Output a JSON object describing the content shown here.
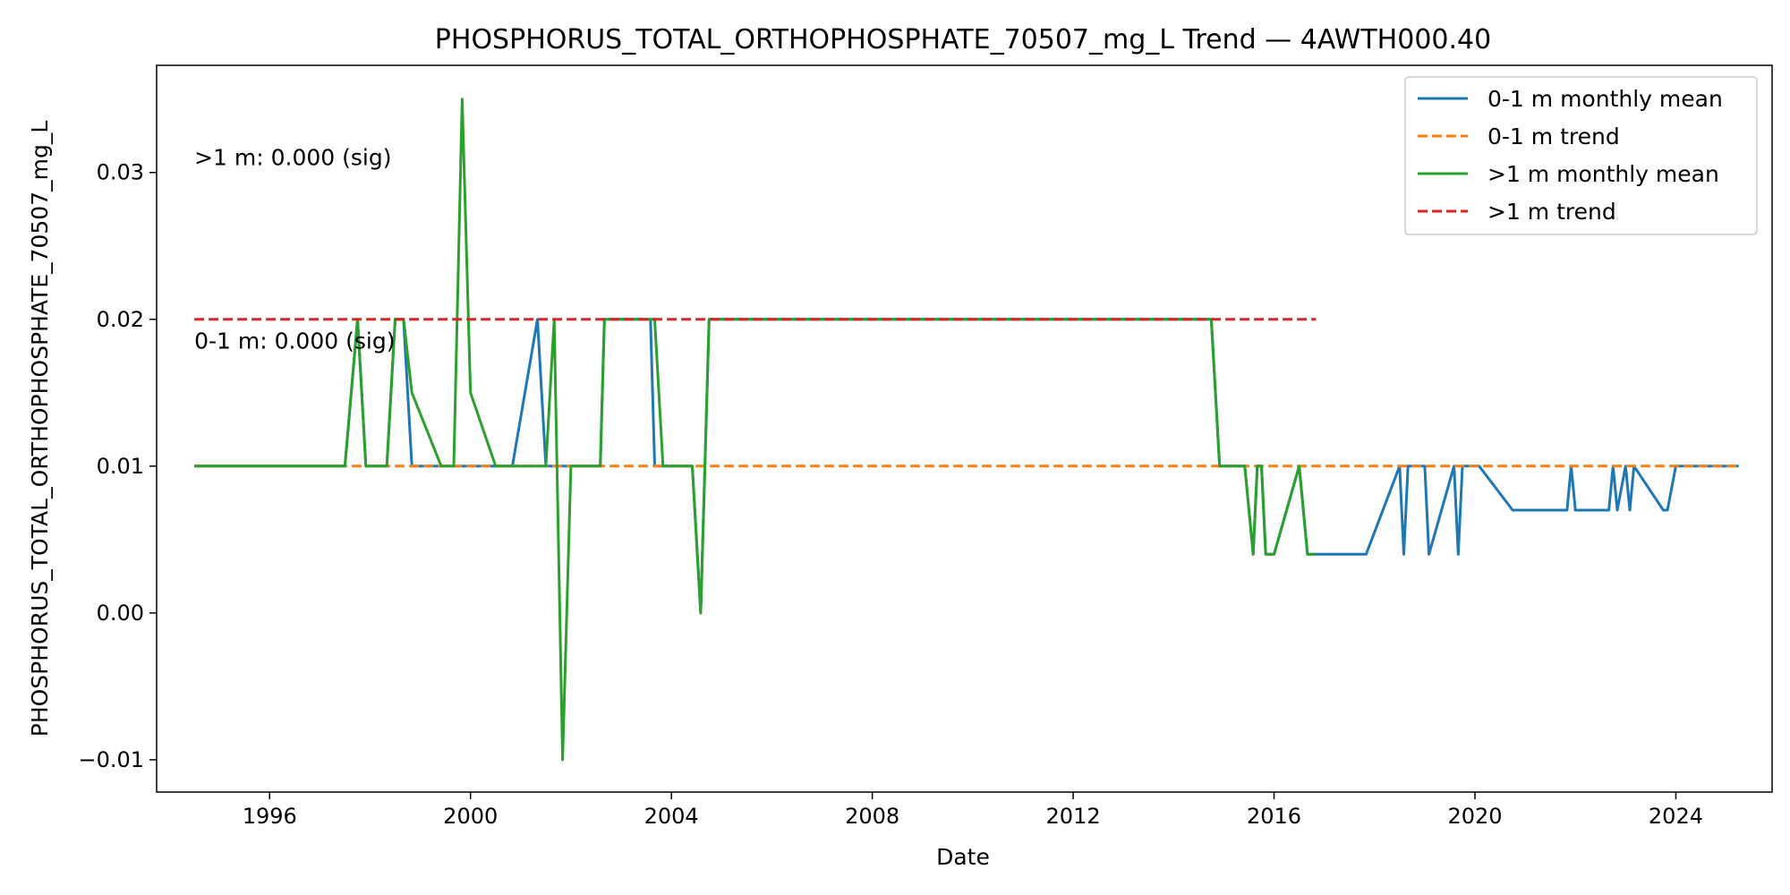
{
  "chart_data": {
    "type": "line",
    "title": "PHOSPHORUS_TOTAL_ORTHOPHOSPHATE_70507_mg_L Trend — 4AWTH000.40",
    "xlabel": "Date",
    "ylabel": "PHOSPHORUS_TOTAL_ORTHOPHOSPHATE_70507_mg_L",
    "x_axis": "date",
    "xlim": [
      "1993-10-01",
      "2025-12-01"
    ],
    "ylim": [
      -0.0122,
      0.0373
    ],
    "x_ticks": [
      "1996",
      "2000",
      "2004",
      "2008",
      "2012",
      "2016",
      "2020",
      "2024"
    ],
    "y_ticks": [
      {
        "value": -0.01,
        "label": "−0.01"
      },
      {
        "value": 0.0,
        "label": "0.00"
      },
      {
        "value": 0.01,
        "label": "0.01"
      },
      {
        "value": 0.02,
        "label": "0.02"
      },
      {
        "value": 0.03,
        "label": "0.03"
      }
    ],
    "grid": false,
    "legend_position": "top-right",
    "annotations": [
      {
        "text": ">1 m: 0.000 (sig)",
        "x": "1994-07-01",
        "y": 0.031
      },
      {
        "text": "0-1 m: 0.000 (sig)",
        "x": "1994-07-01",
        "y": 0.0185
      }
    ],
    "series": [
      {
        "name": "0-1 m monthly mean",
        "color": "#1f77b4",
        "style": "solid",
        "points": [
          [
            "1994-07-01",
            0.01
          ],
          [
            "1997-07-01",
            0.01
          ],
          [
            "1997-10-01",
            0.02
          ],
          [
            "1997-12-01",
            0.01
          ],
          [
            "1998-05-01",
            0.01
          ],
          [
            "1998-07-01",
            0.02
          ],
          [
            "1998-09-01",
            0.02
          ],
          [
            "1998-11-01",
            0.01
          ],
          [
            "1999-06-01",
            0.01
          ],
          [
            "1999-09-01",
            0.01
          ],
          [
            "2000-05-01",
            0.01
          ],
          [
            "2000-11-01",
            0.01
          ],
          [
            "2001-05-01",
            0.02
          ],
          [
            "2001-07-01",
            0.01
          ],
          [
            "2001-09-01",
            0.01
          ],
          [
            "2001-11-01",
            0.01
          ],
          [
            "2002-08-01",
            0.01
          ],
          [
            "2002-09-01",
            0.02
          ],
          [
            "2003-08-01",
            0.02
          ],
          [
            "2003-09-01",
            0.01
          ],
          [
            "2004-06-01",
            0.01
          ],
          [
            "2004-08-01",
            0.0
          ],
          [
            "2004-10-01",
            0.02
          ],
          [
            "2014-10-01",
            0.02
          ],
          [
            "2014-12-01",
            0.01
          ],
          [
            "2015-06-01",
            0.01
          ],
          [
            "2015-08-01",
            0.004
          ],
          [
            "2015-09-01",
            0.01
          ],
          [
            "2015-10-01",
            0.01
          ],
          [
            "2015-11-01",
            0.004
          ],
          [
            "2016-01-01",
            0.004
          ],
          [
            "2016-07-01",
            0.01
          ],
          [
            "2016-09-01",
            0.004
          ],
          [
            "2017-11-01",
            0.004
          ],
          [
            "2018-07-01",
            0.01
          ],
          [
            "2018-08-01",
            0.004
          ],
          [
            "2018-09-01",
            0.01
          ],
          [
            "2019-01-01",
            0.01
          ],
          [
            "2019-02-01",
            0.004
          ],
          [
            "2019-08-01",
            0.01
          ],
          [
            "2019-09-01",
            0.004
          ],
          [
            "2019-10-01",
            0.01
          ],
          [
            "2020-02-01",
            0.01
          ],
          [
            "2020-10-01",
            0.007
          ],
          [
            "2021-11-01",
            0.007
          ],
          [
            "2021-12-01",
            0.01
          ],
          [
            "2022-01-01",
            0.007
          ],
          [
            "2022-09-01",
            0.007
          ],
          [
            "2022-10-01",
            0.01
          ],
          [
            "2022-11-01",
            0.007
          ],
          [
            "2023-01-01",
            0.01
          ],
          [
            "2023-02-01",
            0.007
          ],
          [
            "2023-03-01",
            0.01
          ],
          [
            "2023-10-01",
            0.007
          ],
          [
            "2023-11-01",
            0.007
          ],
          [
            "2024-01-01",
            0.01
          ],
          [
            "2025-04-01",
            0.01
          ]
        ]
      },
      {
        "name": "0-1 m trend",
        "color": "#ff7f0e",
        "style": "dashed",
        "points": [
          [
            "1994-07-01",
            0.01
          ],
          [
            "2025-04-01",
            0.01
          ]
        ]
      },
      {
        "name": ">1 m monthly mean",
        "color": "#2ca02c",
        "style": "solid",
        "points": [
          [
            "1994-07-01",
            0.01
          ],
          [
            "1997-07-01",
            0.01
          ],
          [
            "1997-10-01",
            0.02
          ],
          [
            "1997-12-01",
            0.01
          ],
          [
            "1998-05-01",
            0.01
          ],
          [
            "1998-07-01",
            0.02
          ],
          [
            "1998-09-01",
            0.02
          ],
          [
            "1998-11-01",
            0.015
          ],
          [
            "1999-06-01",
            0.01
          ],
          [
            "1999-09-01",
            0.01
          ],
          [
            "1999-11-01",
            0.035
          ],
          [
            "2000-01-01",
            0.015
          ],
          [
            "2000-07-01",
            0.01
          ],
          [
            "2001-07-01",
            0.01
          ],
          [
            "2001-09-01",
            0.02
          ],
          [
            "2001-11-01",
            -0.01
          ],
          [
            "2002-01-01",
            0.01
          ],
          [
            "2002-08-01",
            0.01
          ],
          [
            "2002-09-01",
            0.02
          ],
          [
            "2003-09-01",
            0.02
          ],
          [
            "2003-11-01",
            0.01
          ],
          [
            "2004-06-01",
            0.01
          ],
          [
            "2004-08-01",
            0.0
          ],
          [
            "2004-10-01",
            0.02
          ],
          [
            "2014-10-01",
            0.02
          ],
          [
            "2014-12-01",
            0.01
          ],
          [
            "2015-06-01",
            0.01
          ],
          [
            "2015-08-01",
            0.004
          ],
          [
            "2015-09-01",
            0.01
          ],
          [
            "2015-10-01",
            0.01
          ],
          [
            "2015-11-01",
            0.004
          ],
          [
            "2016-01-01",
            0.004
          ],
          [
            "2016-07-01",
            0.01
          ],
          [
            "2016-09-01",
            0.004
          ],
          [
            "2016-11-01",
            0.004
          ]
        ]
      },
      {
        "name": ">1 m trend",
        "color": "#d62728",
        "style": "dashed",
        "points": [
          [
            "1994-07-01",
            0.02
          ],
          [
            "2016-11-01",
            0.02
          ]
        ]
      }
    ]
  }
}
